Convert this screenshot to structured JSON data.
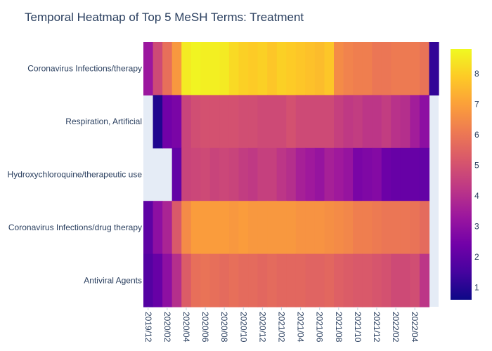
{
  "chart_data": {
    "type": "heatmap",
    "title": "Temporal Heatmap of Top 5 MeSH Terms: Treatment",
    "y_categories": [
      "Coronavirus Infections/therapy",
      "Respiration, Artificial",
      "Hydroxychloroquine/therapeutic use",
      "Coronavirus Infections/drug therapy",
      "Antiviral Agents"
    ],
    "x_tick_labels": [
      "2019/12",
      "2020/02",
      "2020/04",
      "2020/06",
      "2020/08",
      "2020/10",
      "2020/12",
      "2021/02",
      "2021/04",
      "2021/06",
      "2021/08",
      "2021/10",
      "2021/12",
      "2022/02",
      "2022/04"
    ],
    "x_months": [
      "2019/12",
      "2020/01",
      "2020/02",
      "2020/03",
      "2020/04",
      "2020/05",
      "2020/06",
      "2020/07",
      "2020/08",
      "2020/09",
      "2020/10",
      "2020/11",
      "2020/12",
      "2021/01",
      "2021/02",
      "2021/03",
      "2021/04",
      "2021/05",
      "2021/06",
      "2021/07",
      "2021/08",
      "2021/09",
      "2021/10",
      "2021/11",
      "2021/12",
      "2022/01",
      "2022/02",
      "2022/03",
      "2022/04",
      "2022/05",
      "2022/06"
    ],
    "z": [
      [
        3.3,
        4.8,
        5.8,
        6.8,
        8.5,
        8.7,
        8.6,
        8.6,
        8.5,
        8.2,
        8.0,
        7.9,
        8.0,
        7.8,
        8.0,
        7.9,
        7.8,
        7.7,
        7.6,
        7.8,
        6.5,
        6.3,
        6.2,
        6.2,
        6.0,
        6.0,
        6.1,
        6.1,
        6.1,
        5.9,
        1.2
      ],
      [
        null,
        0.9,
        2.4,
        2.6,
        4.6,
        4.9,
        5.0,
        5.0,
        5.0,
        5.0,
        4.9,
        4.9,
        4.8,
        4.8,
        4.8,
        5.0,
        4.8,
        4.8,
        4.8,
        4.8,
        4.5,
        4.3,
        4.4,
        4.2,
        4.2,
        4.4,
        4.1,
        4.0,
        3.5,
        3.0,
        null
      ],
      [
        null,
        null,
        null,
        2.1,
        4.6,
        4.7,
        4.8,
        4.6,
        4.7,
        4.6,
        4.4,
        4.3,
        4.5,
        4.5,
        4.2,
        4.0,
        3.6,
        3.4,
        3.2,
        3.6,
        3.4,
        3.2,
        2.6,
        2.7,
        2.8,
        2.3,
        2.2,
        2.2,
        2.2,
        2.1,
        null
      ],
      [
        2.0,
        3.0,
        3.7,
        5.2,
        6.5,
        6.9,
        6.9,
        6.9,
        6.9,
        6.8,
        6.9,
        6.8,
        6.8,
        6.8,
        6.8,
        6.8,
        6.7,
        6.7,
        6.7,
        6.6,
        6.5,
        6.4,
        6.2,
        6.2,
        6.1,
        6.0,
        6.0,
        6.0,
        5.9,
        5.7,
        null
      ],
      [
        1.8,
        2.2,
        3.0,
        4.0,
        5.3,
        5.8,
        5.9,
        5.8,
        5.7,
        5.8,
        5.7,
        5.7,
        5.6,
        5.7,
        5.6,
        5.6,
        5.6,
        5.5,
        5.5,
        5.6,
        5.4,
        5.3,
        5.2,
        5.2,
        5.1,
        5.0,
        4.8,
        4.8,
        4.9,
        4.2,
        null
      ]
    ],
    "colorscale": "plasma",
    "colorbar": {
      "zmin": 0.6,
      "zmax": 8.8,
      "ticks": [
        1,
        2,
        3,
        4,
        5,
        6,
        7,
        8
      ]
    },
    "missing_color": "#e5ecf6"
  }
}
